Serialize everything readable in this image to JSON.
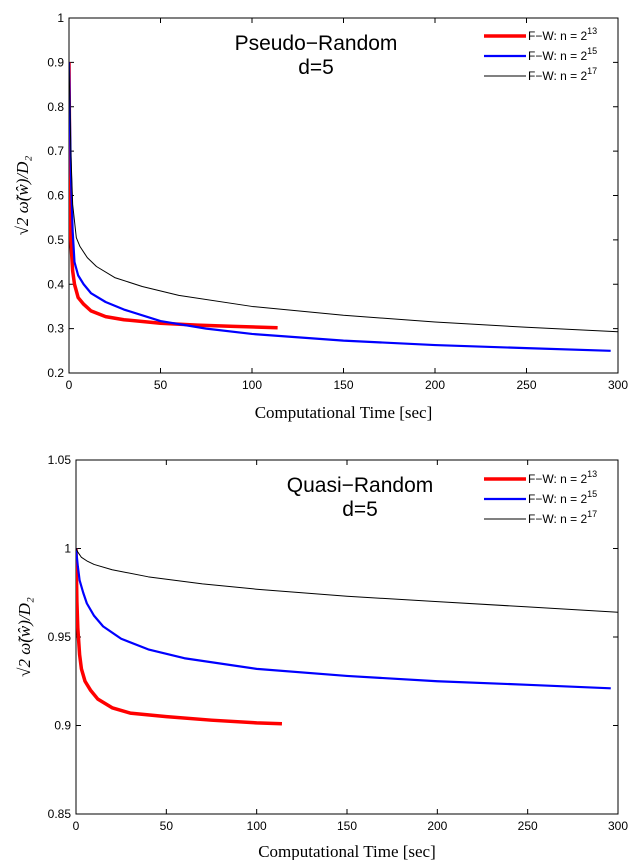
{
  "chart_data": [
    {
      "type": "line",
      "title": "",
      "annotation": [
        "Pseudo−Random",
        "d=5"
      ],
      "xlabel": "Computational Time [sec]",
      "ylabel": "√2 ω̃(ŵ)/D₂",
      "xlim": [
        0,
        300
      ],
      "ylim": [
        0.2,
        1
      ],
      "xticks": [
        0,
        50,
        100,
        150,
        200,
        250,
        300
      ],
      "xtick_labels": [
        "0",
        "50",
        "100",
        "150",
        "200",
        "250",
        "300"
      ],
      "yticks": [
        0.2,
        0.3,
        0.4,
        0.5,
        0.6,
        0.7,
        0.8,
        0.9,
        1
      ],
      "ytick_labels": [
        "0.2",
        "0.3",
        "0.4",
        "0.5",
        "0.6",
        "0.7",
        "0.8",
        "0.9",
        "1"
      ],
      "grid": false,
      "legend_position": "top-right",
      "series": [
        {
          "name": "F−W: n = 2^13",
          "legend_base": "F−W: n = 2",
          "legend_exp": "13",
          "color": "#ff0000",
          "width": 3.5,
          "x": [
            0,
            0.5,
            1,
            2,
            3,
            5,
            8,
            12,
            20,
            30,
            50,
            70,
            90,
            114
          ],
          "y": [
            0.9,
            0.6,
            0.5,
            0.43,
            0.4,
            0.37,
            0.355,
            0.34,
            0.327,
            0.32,
            0.312,
            0.308,
            0.305,
            0.302
          ]
        },
        {
          "name": "F−W: n = 2^15",
          "legend_base": "F−W: n = 2",
          "legend_exp": "15",
          "color": "#0000ff",
          "width": 2.2,
          "x": [
            0,
            1,
            2,
            3,
            5,
            8,
            12,
            20,
            30,
            50,
            75,
            100,
            150,
            200,
            250,
            296
          ],
          "y": [
            0.9,
            0.65,
            0.52,
            0.45,
            0.42,
            0.4,
            0.38,
            0.36,
            0.343,
            0.317,
            0.3,
            0.288,
            0.273,
            0.263,
            0.256,
            0.25
          ]
        },
        {
          "name": "F−W: n = 2^17",
          "legend_base": "F−W: n = 2",
          "legend_exp": "17",
          "color": "#000000",
          "width": 1,
          "x": [
            0,
            1,
            2,
            4,
            6,
            10,
            15,
            25,
            40,
            60,
            100,
            150,
            200,
            250,
            300
          ],
          "y": [
            0.9,
            0.7,
            0.58,
            0.505,
            0.485,
            0.46,
            0.44,
            0.415,
            0.395,
            0.375,
            0.35,
            0.33,
            0.315,
            0.303,
            0.293
          ]
        }
      ]
    },
    {
      "type": "line",
      "title": "",
      "annotation": [
        "Quasi−Random",
        "d=5"
      ],
      "xlabel": "Computational Time [sec]",
      "ylabel": "√2 ω̃(ŵ)/D₂",
      "xlim": [
        0,
        300
      ],
      "ylim": [
        0.85,
        1.05
      ],
      "xticks": [
        0,
        50,
        100,
        150,
        200,
        250,
        300
      ],
      "xtick_labels": [
        "0",
        "50",
        "100",
        "150",
        "200",
        "250",
        "300"
      ],
      "yticks": [
        0.85,
        0.9,
        0.95,
        1,
        1.05
      ],
      "ytick_labels": [
        "0.85",
        "0.9",
        "0.95",
        "1",
        "1.05"
      ],
      "grid": false,
      "legend_position": "top-right",
      "series": [
        {
          "name": "F−W: n = 2^13",
          "legend_base": "F−W: n = 2",
          "legend_exp": "13",
          "color": "#ff0000",
          "width": 3.5,
          "x": [
            0,
            0.5,
            1,
            2,
            3,
            5,
            8,
            12,
            20,
            30,
            50,
            75,
            100,
            114
          ],
          "y": [
            1.0,
            0.97,
            0.955,
            0.94,
            0.932,
            0.925,
            0.92,
            0.915,
            0.91,
            0.907,
            0.905,
            0.903,
            0.9015,
            0.901
          ]
        },
        {
          "name": "F−W: n = 2^15",
          "legend_base": "F−W: n = 2",
          "legend_exp": "15",
          "color": "#0000ff",
          "width": 2.2,
          "x": [
            0,
            1,
            2,
            4,
            6,
            10,
            15,
            25,
            40,
            60,
            100,
            150,
            200,
            250,
            296
          ],
          "y": [
            1.0,
            0.99,
            0.982,
            0.975,
            0.969,
            0.962,
            0.956,
            0.949,
            0.943,
            0.938,
            0.932,
            0.928,
            0.925,
            0.923,
            0.921
          ]
        },
        {
          "name": "F−W: n = 2^17",
          "legend_base": "F−W: n = 2",
          "legend_exp": "17",
          "color": "#000000",
          "width": 1,
          "x": [
            0,
            1,
            3,
            6,
            10,
            20,
            40,
            70,
            100,
            150,
            200,
            250,
            300
          ],
          "y": [
            1.0,
            0.998,
            0.995,
            0.993,
            0.991,
            0.988,
            0.984,
            0.98,
            0.977,
            0.973,
            0.97,
            0.967,
            0.964
          ]
        }
      ]
    }
  ]
}
